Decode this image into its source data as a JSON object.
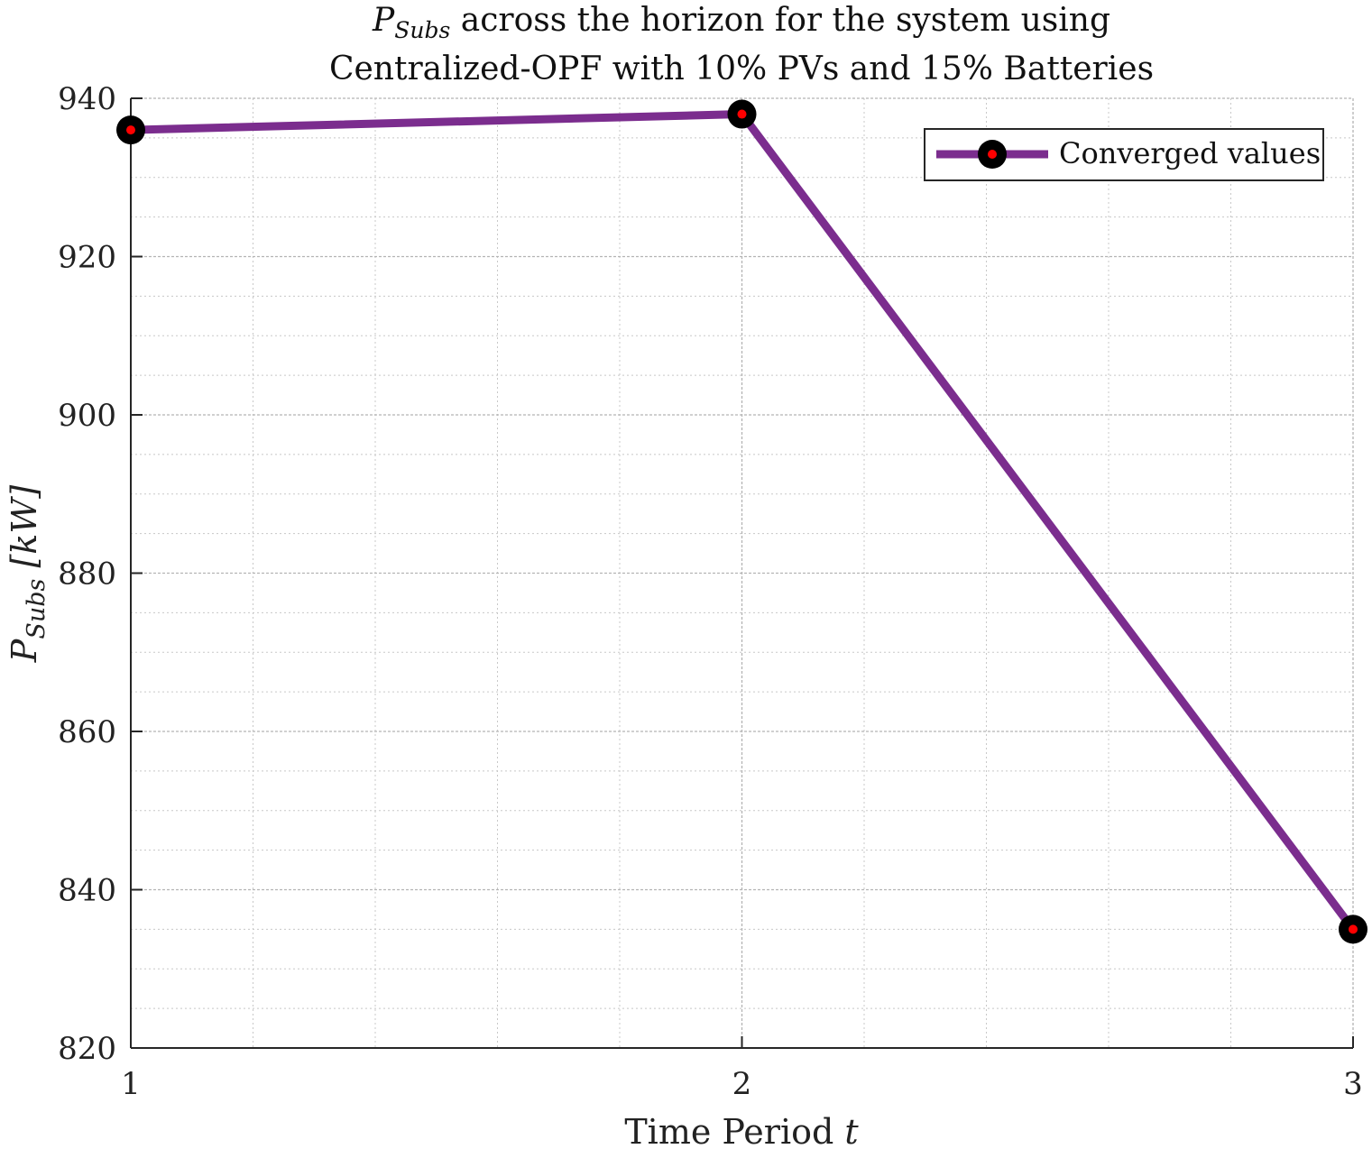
{
  "chart_data": {
    "type": "line",
    "title_line1": {
      "symbol": "P",
      "subscript": "Subs",
      "rest": " across the horizon for the system using"
    },
    "title_line2": "Centralized-OPF with 10% PVs and 15% Batteries",
    "xlabel": {
      "text": "Time Period ",
      "variable": "t"
    },
    "ylabel": {
      "symbol": "P",
      "subscript": "Subs",
      "unit": " [kW]"
    },
    "x": [
      1,
      2,
      3
    ],
    "series": [
      {
        "name": "Converged values",
        "values": [
          936,
          938,
          835
        ]
      }
    ],
    "xlim": [
      1,
      3
    ],
    "ylim": [
      820,
      940
    ],
    "xticks": [
      "1",
      "2",
      "3"
    ],
    "yticks": [
      "820",
      "840",
      "860",
      "880",
      "900",
      "920",
      "940"
    ],
    "grid": true,
    "minor_grid": true,
    "legend_position": "top-right",
    "colors": {
      "line": "#7b2d8e",
      "marker_edge": "#000000",
      "marker_face": "#ff0000",
      "axis": "#262626",
      "grid": "#c8c8c8"
    }
  }
}
